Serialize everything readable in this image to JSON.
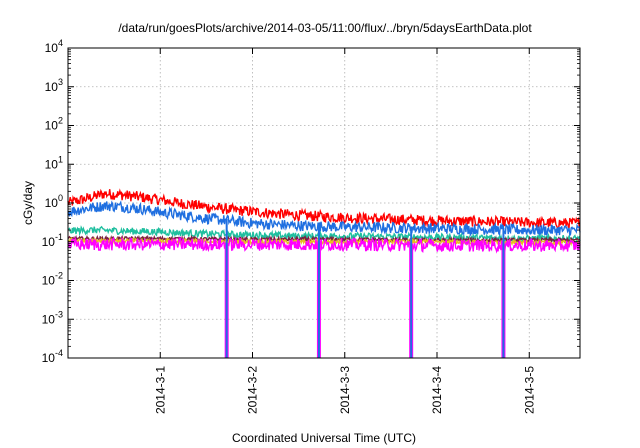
{
  "chart_data": {
    "type": "line",
    "title": "/data/run/goesPlots/archive/2014-03-05/11:00/flux/../bryn/5daysEarthData.plot",
    "xlabel": "Coordinated Universal Time (UTC)",
    "ylabel": "cGy/day",
    "yscale": "log",
    "ylim": [
      0.0001,
      10000
    ],
    "xlim_days": [
      0,
      5.55
    ],
    "grid": true,
    "legend": "none",
    "y_ticks": [
      {
        "base": "10",
        "exp": "-4",
        "value": 0.0001
      },
      {
        "base": "10",
        "exp": "-3",
        "value": 0.001
      },
      {
        "base": "10",
        "exp": "-2",
        "value": 0.01
      },
      {
        "base": "10",
        "exp": "-1",
        "value": 0.1
      },
      {
        "base": "10",
        "exp": "0",
        "value": 1
      },
      {
        "base": "10",
        "exp": "1",
        "value": 10
      },
      {
        "base": "10",
        "exp": "2",
        "value": 100
      },
      {
        "base": "10",
        "exp": "3",
        "value": 1000
      },
      {
        "base": "10",
        "exp": "4",
        "value": 10000
      }
    ],
    "x_ticks": [
      {
        "label": "2014-3-1",
        "day": 1
      },
      {
        "label": "2014-3-2",
        "day": 2
      },
      {
        "label": "2014-3-3",
        "day": 3
      },
      {
        "label": "2014-3-4",
        "day": 4
      },
      {
        "label": "2014-3-5",
        "day": 5
      }
    ],
    "series": [
      {
        "color": "#ff0000",
        "noise": 0.14,
        "points": [
          [
            0,
            1.0
          ],
          [
            0.2,
            1.3
          ],
          [
            0.4,
            1.75
          ],
          [
            0.6,
            1.6
          ],
          [
            0.8,
            1.4
          ],
          [
            1.0,
            1.2
          ],
          [
            1.2,
            1.0
          ],
          [
            1.5,
            0.8
          ],
          [
            1.8,
            0.66
          ],
          [
            2.0,
            0.6
          ],
          [
            2.5,
            0.48
          ],
          [
            3.0,
            0.42
          ],
          [
            3.5,
            0.38
          ],
          [
            4.0,
            0.35
          ],
          [
            4.5,
            0.33
          ],
          [
            5.0,
            0.31
          ],
          [
            5.55,
            0.3
          ]
        ]
      },
      {
        "color": "#1f6fe0",
        "noise": 0.14,
        "points": [
          [
            0,
            0.6
          ],
          [
            0.2,
            0.72
          ],
          [
            0.4,
            0.85
          ],
          [
            0.6,
            0.8
          ],
          [
            0.8,
            0.7
          ],
          [
            1.0,
            0.58
          ],
          [
            1.2,
            0.5
          ],
          [
            1.5,
            0.4
          ],
          [
            1.8,
            0.34
          ],
          [
            2.0,
            0.3
          ],
          [
            2.5,
            0.26
          ],
          [
            3.0,
            0.24
          ],
          [
            3.5,
            0.23
          ],
          [
            4.0,
            0.22
          ],
          [
            4.5,
            0.21
          ],
          [
            5.0,
            0.2
          ],
          [
            5.55,
            0.2
          ]
        ]
      },
      {
        "color": "#1fbf9f",
        "noise": 0.09,
        "points": [
          [
            0,
            0.19
          ],
          [
            0.3,
            0.2
          ],
          [
            0.6,
            0.19
          ],
          [
            1.0,
            0.18
          ],
          [
            1.5,
            0.16
          ],
          [
            2.0,
            0.15
          ],
          [
            2.5,
            0.14
          ],
          [
            3.0,
            0.14
          ],
          [
            3.5,
            0.135
          ],
          [
            4.0,
            0.13
          ],
          [
            4.5,
            0.125
          ],
          [
            5.0,
            0.12
          ],
          [
            5.55,
            0.12
          ]
        ]
      },
      {
        "color": "#7a1f3f",
        "noise": 0.05,
        "points": [
          [
            0,
            0.12
          ],
          [
            1.0,
            0.12
          ],
          [
            2.0,
            0.115
          ],
          [
            3.0,
            0.115
          ],
          [
            4.0,
            0.11
          ],
          [
            5.0,
            0.11
          ],
          [
            5.55,
            0.11
          ]
        ]
      },
      {
        "color": "#e8c020",
        "noise": 0.05,
        "points": [
          [
            0,
            0.11
          ],
          [
            1.0,
            0.105
          ],
          [
            2.0,
            0.1
          ],
          [
            3.0,
            0.1
          ],
          [
            4.0,
            0.1
          ],
          [
            5.0,
            0.095
          ],
          [
            5.55,
            0.095
          ]
        ]
      },
      {
        "color": "#ff00ff",
        "noise": 0.16,
        "points": [
          [
            0,
            0.085
          ],
          [
            1.0,
            0.085
          ],
          [
            2.0,
            0.085
          ],
          [
            3.0,
            0.085
          ],
          [
            4.0,
            0.08
          ],
          [
            5.0,
            0.08
          ],
          [
            5.55,
            0.08
          ]
        ]
      }
    ],
    "dropouts": [
      {
        "color": "#ff00ff",
        "day": 1.72
      },
      {
        "color": "#ff00ff",
        "day": 2.72
      },
      {
        "color": "#ff00ff",
        "day": 3.72
      },
      {
        "color": "#ff00ff",
        "day": 4.72
      },
      {
        "color": "#1f6fe0",
        "day": 1.72
      },
      {
        "color": "#1f6fe0",
        "day": 2.72
      },
      {
        "color": "#1f6fe0",
        "day": 3.72
      },
      {
        "color": "#1f6fe0",
        "day": 4.72
      }
    ]
  }
}
